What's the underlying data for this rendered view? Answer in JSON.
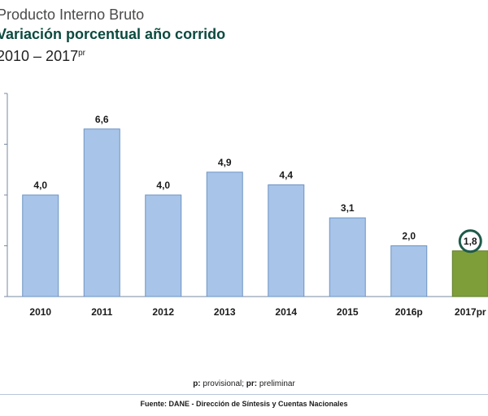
{
  "header": {
    "title": "Producto Interno Bruto",
    "subtitle": "Variación porcentual año corrido",
    "period": "2010 – 2017",
    "period_sup": "pr"
  },
  "chart_data": {
    "type": "bar",
    "categories": [
      "2010",
      "2011",
      "2012",
      "2013",
      "2014",
      "2015",
      "2016p",
      "2017pr"
    ],
    "values": [
      4.0,
      6.6,
      4.0,
      4.9,
      4.4,
      3.1,
      2.0,
      1.8
    ],
    "value_labels": [
      "4,0",
      "6,6",
      "4,0",
      "4,9",
      "4,4",
      "3,1",
      "2,0",
      "1,8"
    ],
    "highlight_index": 7,
    "ylim": [
      0,
      8
    ],
    "colors": {
      "bar": "#a8c4e8",
      "bar_stroke": "#6d93c4",
      "highlight": "#7e9e3a",
      "highlight_stroke": "#5f7d26",
      "circle": "#1f5a4a",
      "axis": "#7a8aa0"
    }
  },
  "footnote": {
    "p_key": "p:",
    "p_text": " provisional; ",
    "pr_key": "pr:",
    "pr_text": " preliminar"
  },
  "source": "Fuente: DANE - Dirección de Síntesis y Cuentas Nacionales"
}
